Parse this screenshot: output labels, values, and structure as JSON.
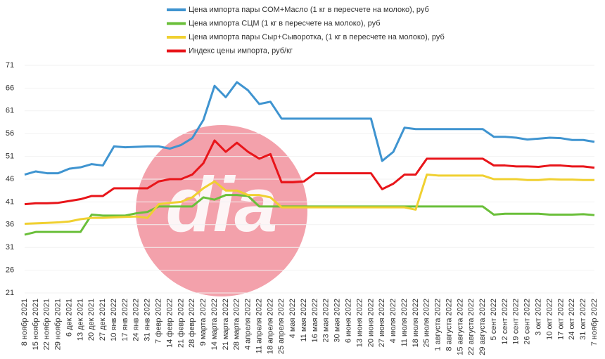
{
  "chart_data": {
    "type": "line",
    "watermark": "dia",
    "categories": [
      "8 ноябр 2021",
      "15 ноябр 2021",
      "22 ноябр 2021",
      "29 ноябр 2021",
      "6 дек 2021",
      "13 дек 2021",
      "20 дек 2021",
      "27 дек 2021",
      "10 янв 2022",
      "17 янв 2022",
      "24 янв 2022",
      "31 янв 2022",
      "7 февр 2022",
      "14 февр 2022",
      "21 февр 2022",
      "28 февр 2022",
      "9 марта 2022",
      "14 марта 2022",
      "21 марта 2022",
      "28 марта 2022",
      "4 апреля 2022",
      "11 апреля 2022",
      "18 апреля 2022",
      "25 апреля 2022",
      "4 мая 2022",
      "11 мая 2022",
      "16 мая 2022",
      "23 мая 2022",
      "30 мая 2022",
      "6 июня 2022",
      "13 июня 2022",
      "20 июня 2022",
      "27 июня 2022",
      "4 июля 2022",
      "11 июля 2022",
      "18 июля 2022",
      "25 июля 2022",
      "1 августа 2022",
      "8 августа 2022",
      "15 августа 2022",
      "22 августа 2022",
      "29 августа 2022",
      "5 сент 2022",
      "12 сент 2022",
      "19 сент 2022",
      "26 сент 2022",
      "3 окт 2022",
      "10 окт 2022",
      "17 окт 2022",
      "24 окт 2022",
      "31 окт 2022",
      "7 ноябр 2022"
    ],
    "series": [
      {
        "name": "Цена импорта пары СОМ+Масло  (1 кг в пересчете на молоко), руб",
        "color": "#3f94d0",
        "values": [
          47,
          47.7,
          47.3,
          47.3,
          48.3,
          48.6,
          49.3,
          49,
          53.2,
          53,
          53.1,
          53.2,
          53.2,
          52.7,
          53.5,
          55,
          59,
          66.5,
          64,
          67.3,
          65.5,
          62.5,
          63,
          59.3,
          59.3,
          59.3,
          59.3,
          59.3,
          59.3,
          59.3,
          59.3,
          59.3,
          50,
          52,
          57.3,
          57,
          57,
          57,
          57,
          57,
          57,
          57,
          55.3,
          55.3,
          55.1,
          54.7,
          54.9,
          55.1,
          55,
          54.6,
          54.6,
          54.2
        ]
      },
      {
        "name": "Цена импорта СЦМ (1 кг в пересчете на молоко), руб",
        "color": "#6abf3a",
        "values": [
          33.8,
          34.4,
          34.4,
          34.4,
          34.4,
          34.4,
          38.2,
          38,
          38,
          38,
          38.5,
          38.8,
          40,
          40,
          40,
          40,
          42,
          41.5,
          42.5,
          42.5,
          42.3,
          40,
          40,
          40,
          40,
          40,
          40,
          40,
          40,
          40,
          40,
          40,
          40,
          40,
          40,
          40,
          40,
          40,
          40,
          40,
          40,
          40,
          38.2,
          38.4,
          38.4,
          38.4,
          38.4,
          38.2,
          38.2,
          38.2,
          38.3,
          38.1
        ]
      },
      {
        "name": "Цена импорта пары Сыр+Сыворотка, (1 кг в пересчете на молоко), руб",
        "color": "#f0d030",
        "values": [
          36.2,
          36.3,
          36.4,
          36.5,
          36.7,
          37.2,
          37.5,
          37.5,
          37.6,
          37.7,
          37.8,
          37.5,
          40.5,
          40.8,
          41,
          42,
          44,
          45.5,
          43.5,
          43.5,
          42.5,
          42.5,
          42,
          39.8,
          39.8,
          39.8,
          39.8,
          39.8,
          39.8,
          39.8,
          39.8,
          39.8,
          39.8,
          39.8,
          39.8,
          39.3,
          47,
          46.8,
          46.8,
          46.8,
          46.8,
          46.8,
          46,
          46,
          46,
          45.8,
          45.8,
          46,
          45.9,
          45.9,
          45.8,
          45.8
        ]
      },
      {
        "name": "Индекс цены импорта, руб/кг",
        "color": "#e8151a",
        "values": [
          40.5,
          40.7,
          40.7,
          40.8,
          41.2,
          41.6,
          42.3,
          42.3,
          44,
          44,
          44,
          44,
          45.5,
          46,
          46,
          47,
          49.5,
          54.5,
          52,
          54,
          52,
          50.5,
          51.5,
          45.3,
          45.3,
          45.5,
          47.3,
          47.3,
          47.3,
          47.3,
          47.3,
          47.3,
          43.8,
          45,
          47,
          47,
          50.5,
          50.5,
          50.5,
          50.5,
          50.5,
          50.5,
          49,
          49,
          48.8,
          48.8,
          48.7,
          49,
          49,
          48.8,
          48.8,
          48.5
        ]
      }
    ],
    "ylim": [
      21,
      71
    ],
    "yticks": [
      21,
      26,
      31,
      36,
      41,
      46,
      51,
      56,
      61,
      66,
      71
    ],
    "grid": true
  }
}
